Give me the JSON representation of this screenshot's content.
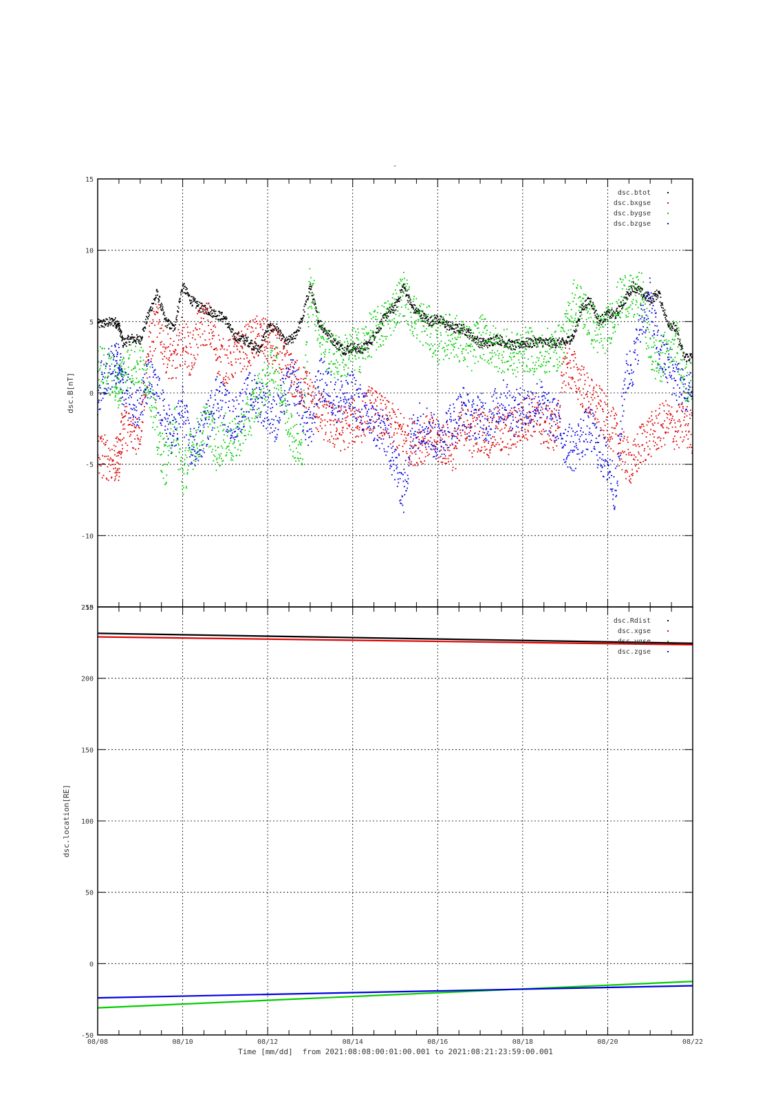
{
  "title": "-",
  "footer": {
    "xlabel": "Time [mm/dd]",
    "range_text": "from 2021:08:08:00:01:00.001  to  2021:08:21:23:59:00.001"
  },
  "chart_data": [
    {
      "type": "scatter",
      "ylabel": "dsc.B[nT]",
      "ylim": [
        -15,
        15
      ],
      "yticks": [
        "-15",
        "-10",
        "-5",
        "0",
        "5",
        "10",
        "15"
      ],
      "ytick_values": [
        -15,
        -10,
        -5,
        0,
        5,
        10,
        15
      ],
      "xlim": [
        "08/08",
        "08/22"
      ],
      "grid": true,
      "legend_position": "top-right",
      "series": [
        {
          "name": "dsc.btot",
          "color": "#000000",
          "x": [
            0,
            0.2,
            0.4,
            0.5,
            0.6,
            0.8,
            1.0,
            1.2,
            1.4,
            1.6,
            1.8,
            2.0,
            2.2,
            2.4,
            2.6,
            2.8,
            3.0,
            3.2,
            3.4,
            3.6,
            3.8,
            4.0,
            4.2,
            4.4,
            4.6,
            4.8,
            5.0,
            5.2,
            5.4,
            5.6,
            5.8,
            6.0,
            6.2,
            6.4,
            6.6,
            6.8,
            7.0,
            7.2,
            7.4,
            7.6,
            7.8,
            8.0,
            8.2,
            8.4,
            8.6,
            8.8,
            9.0,
            9.2,
            9.4,
            9.6,
            9.8,
            10.0,
            10.2,
            10.4,
            10.6,
            10.8,
            11.0,
            11.2,
            11.4,
            11.6,
            11.8,
            12.0,
            12.2,
            12.4,
            12.6,
            12.8,
            13.0,
            13.2,
            13.4,
            13.6,
            13.8,
            14.0
          ],
          "y": [
            4.8,
            4.9,
            5.0,
            4.7,
            3.5,
            3.8,
            3.7,
            5.5,
            7.0,
            5.0,
            4.5,
            7.5,
            6.5,
            6.0,
            5.8,
            5.5,
            5.2,
            4.0,
            3.8,
            3.5,
            3.0,
            4.5,
            4.6,
            3.5,
            3.8,
            5.0,
            7.5,
            5.0,
            4.2,
            3.5,
            3.0,
            3.2,
            3.0,
            3.5,
            4.5,
            5.5,
            6.0,
            7.5,
            6.0,
            5.5,
            5.0,
            5.2,
            4.8,
            4.5,
            4.5,
            4.0,
            3.5,
            3.5,
            3.8,
            3.5,
            3.3,
            3.5,
            3.5,
            3.6,
            3.5,
            3.5,
            3.5,
            4.0,
            6.0,
            6.5,
            5.0,
            5.5,
            5.5,
            6.5,
            7.5,
            7.0,
            6.5,
            7.0,
            5.0,
            4.5,
            2.5,
            2.5
          ]
        },
        {
          "name": "dsc.bxgse",
          "color": "#dd0000",
          "x": [
            0,
            0.2,
            0.4,
            0.5,
            0.6,
            0.8,
            1.0,
            1.2,
            1.4,
            1.6,
            1.8,
            2.0,
            2.2,
            2.4,
            2.6,
            2.8,
            3.0,
            3.2,
            3.4,
            3.6,
            3.8,
            4.0,
            4.2,
            4.4,
            4.6,
            4.8,
            5.0,
            5.2,
            5.4,
            5.6,
            5.8,
            6.0,
            6.2,
            6.4,
            6.6,
            6.8,
            7.0,
            7.2,
            7.4,
            7.6,
            7.8,
            8.0,
            8.2,
            8.4,
            8.6,
            8.8,
            9.0,
            9.2,
            9.4,
            9.6,
            9.8,
            10.0,
            10.2,
            10.4,
            10.6,
            10.8,
            11.0,
            11.2,
            11.4,
            11.6,
            11.8,
            12.0,
            12.2,
            12.4,
            12.6,
            12.8,
            13.0,
            13.2,
            13.4,
            13.6,
            13.8,
            14.0
          ],
          "y": [
            -4.3,
            -4.5,
            -4.8,
            -4.6,
            -2.0,
            -3.0,
            -2.5,
            3.0,
            5.0,
            3.0,
            2.0,
            4.0,
            2.5,
            4.5,
            5.0,
            3.0,
            2.0,
            2.5,
            3.0,
            3.5,
            4.0,
            3.5,
            3.0,
            2.0,
            1.0,
            0.5,
            0.0,
            -1.5,
            -2.0,
            -2.5,
            -2.5,
            -2.0,
            -2.0,
            -1.0,
            -1.5,
            -2.0,
            -2.5,
            -3.0,
            -3.5,
            -3.5,
            -3.0,
            -3.5,
            -3.5,
            -4.0,
            -2.0,
            -3.0,
            -2.5,
            -3.0,
            -2.5,
            -3.0,
            -2.5,
            -2.0,
            -1.5,
            -2.0,
            -2.5,
            -2.5,
            2.0,
            1.5,
            0.5,
            -0.5,
            -1.0,
            -2.0,
            -3.0,
            -4.5,
            -5.0,
            -3.5,
            -3.0,
            -2.5,
            -2.0,
            -2.5,
            -2.2,
            -2.8
          ]
        },
        {
          "name": "dsc.bygse",
          "color": "#00cc00",
          "x": [
            0,
            0.2,
            0.4,
            0.5,
            0.6,
            0.8,
            1.0,
            1.2,
            1.4,
            1.6,
            1.8,
            2.0,
            2.2,
            2.4,
            2.6,
            2.8,
            3.0,
            3.2,
            3.4,
            3.6,
            3.8,
            4.0,
            4.2,
            4.4,
            4.6,
            4.8,
            5.0,
            5.2,
            5.4,
            5.6,
            5.8,
            6.0,
            6.2,
            6.4,
            6.6,
            6.8,
            7.0,
            7.2,
            7.4,
            7.6,
            7.8,
            8.0,
            8.2,
            8.4,
            8.6,
            8.8,
            9.0,
            9.2,
            9.4,
            9.6,
            9.8,
            10.0,
            10.2,
            10.4,
            10.6,
            10.8,
            11.0,
            11.2,
            11.4,
            11.6,
            11.8,
            12.0,
            12.2,
            12.4,
            12.6,
            12.8,
            13.0,
            13.2,
            13.4,
            13.6,
            13.8,
            14.0
          ],
          "y": [
            2.0,
            1.5,
            1.0,
            0.5,
            1.5,
            2.0,
            2.0,
            1.0,
            -3.0,
            -5.0,
            -2.0,
            -6.0,
            -4.0,
            -3.0,
            -2.0,
            -4.0,
            -3.0,
            -3.5,
            -2.5,
            -1.5,
            0.0,
            1.0,
            2.0,
            -1.0,
            -3.0,
            -4.5,
            8.0,
            4.5,
            3.0,
            2.5,
            2.5,
            3.0,
            3.0,
            4.0,
            4.5,
            5.0,
            6.0,
            7.0,
            5.5,
            5.0,
            4.5,
            3.5,
            4.0,
            4.0,
            3.5,
            3.0,
            4.0,
            3.5,
            3.0,
            3.0,
            2.5,
            3.0,
            3.0,
            2.5,
            3.0,
            3.0,
            4.0,
            6.5,
            6.0,
            5.0,
            4.0,
            4.5,
            6.0,
            7.0,
            6.5,
            7.0,
            3.0,
            2.0,
            3.0,
            4.0,
            1.0,
            0.5
          ]
        },
        {
          "name": "dsc.bzgse",
          "color": "#0000dd",
          "x": [
            0,
            0.2,
            0.4,
            0.5,
            0.6,
            0.8,
            1.0,
            1.2,
            1.4,
            1.6,
            1.8,
            2.0,
            2.2,
            2.4,
            2.6,
            2.8,
            3.0,
            3.2,
            3.4,
            3.6,
            3.8,
            4.0,
            4.2,
            4.4,
            4.6,
            4.8,
            5.0,
            5.2,
            5.4,
            5.6,
            5.8,
            6.0,
            6.2,
            6.4,
            6.6,
            6.8,
            7.0,
            7.2,
            7.4,
            7.6,
            7.8,
            8.0,
            8.2,
            8.4,
            8.6,
            8.8,
            9.0,
            9.2,
            9.4,
            9.6,
            9.8,
            10.0,
            10.2,
            10.4,
            10.6,
            10.8,
            11.0,
            11.2,
            11.4,
            11.6,
            11.8,
            12.0,
            12.2,
            12.4,
            12.6,
            12.8,
            13.0,
            13.2,
            13.4,
            13.6,
            13.8,
            14.0
          ],
          "y": [
            0.0,
            1.5,
            2.0,
            1.8,
            0.5,
            -0.5,
            -1.0,
            1.0,
            0.0,
            -2.0,
            -3.0,
            -1.0,
            -4.0,
            -3.5,
            -2.0,
            0.0,
            -1.0,
            -2.0,
            -1.0,
            0.0,
            -0.5,
            -1.0,
            -2.0,
            0.0,
            1.0,
            -1.0,
            -3.0,
            1.0,
            0.5,
            -0.5,
            -0.5,
            0.0,
            -1.0,
            -2.0,
            -2.5,
            -3.0,
            -5.0,
            -7.0,
            -3.0,
            -2.0,
            -2.5,
            -3.5,
            -2.5,
            -2.0,
            -1.0,
            -2.0,
            -1.5,
            -2.0,
            -1.0,
            -0.5,
            -1.5,
            -1.0,
            -1.0,
            -0.5,
            -1.5,
            -2.0,
            -3.5,
            -4.0,
            -3.0,
            -2.5,
            -4.0,
            -5.0,
            -7.0,
            1.0,
            2.0,
            5.0,
            6.5,
            3.0,
            2.0,
            1.0,
            0.0,
            0.0
          ]
        }
      ]
    },
    {
      "type": "line",
      "ylabel": "dsc.location[RE]",
      "ylim": [
        -50,
        250
      ],
      "yticks": [
        "-50",
        "0",
        "50",
        "100",
        "150",
        "200",
        "250"
      ],
      "ytick_values": [
        -50,
        0,
        50,
        100,
        150,
        200,
        250
      ],
      "xlim": [
        "08/08",
        "08/22"
      ],
      "xticks": [
        "08/08",
        "08/10",
        "08/12",
        "08/14",
        "08/16",
        "08/18",
        "08/20",
        "08/22"
      ],
      "grid": true,
      "legend_position": "top-right",
      "series": [
        {
          "name": "dsc.Rdist",
          "color": "#000000",
          "x": [
            0,
            14
          ],
          "y": [
            231.5,
            224.5
          ]
        },
        {
          "name": "dsc.xgse",
          "color": "#dd0000",
          "x": [
            0,
            14
          ],
          "y": [
            229.0,
            223.5
          ]
        },
        {
          "name": "dsc.ygse",
          "color": "#00cc00",
          "x": [
            0,
            14
          ],
          "y": [
            -31.0,
            -12.5
          ]
        },
        {
          "name": "dsc.zgse",
          "color": "#0000dd",
          "x": [
            0,
            14
          ],
          "y": [
            -24.0,
            -15.5
          ]
        }
      ]
    }
  ]
}
